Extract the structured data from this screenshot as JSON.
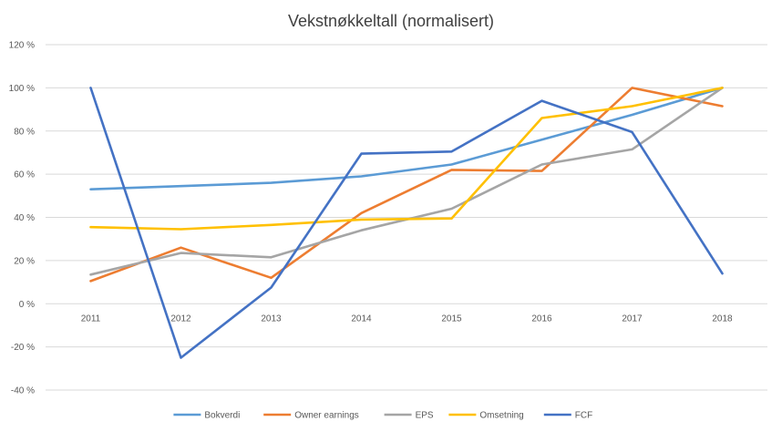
{
  "chart_data": {
    "type": "line",
    "title": "Vekstnøkkeltall (normalisert)",
    "xlabel": "",
    "ylabel": "",
    "x": [
      "2011",
      "2012",
      "2013",
      "2014",
      "2015",
      "2016",
      "2017",
      "2018"
    ],
    "y_ticks": [
      "120 %",
      "100 %",
      "80 %",
      "60 %",
      "40 %",
      "20 %",
      "0 %",
      "-20 %",
      "-40 %"
    ],
    "ylim": [
      -40,
      120
    ],
    "grid": true,
    "legend_position": "bottom",
    "series": [
      {
        "name": "Bokverdi",
        "color": "#5B9BD5",
        "values": [
          53,
          54.5,
          56,
          59,
          64.5,
          76,
          87.5,
          100
        ]
      },
      {
        "name": "Owner earnings",
        "color": "#ED7D31",
        "values": [
          10.5,
          26,
          12,
          42,
          62,
          61.5,
          100,
          91.5
        ]
      },
      {
        "name": "EPS",
        "color": "#A5A5A5",
        "values": [
          13.5,
          23.5,
          21.5,
          34,
          44,
          64.5,
          71.5,
          100
        ]
      },
      {
        "name": "Omsetning",
        "color": "#FFC000",
        "values": [
          35.5,
          34.5,
          36.5,
          39,
          39.5,
          86,
          91.5,
          100
        ]
      },
      {
        "name": "FCF",
        "color": "#4472C4",
        "values": [
          100,
          -25,
          7.5,
          69.5,
          70.5,
          94,
          79.5,
          14
        ]
      }
    ]
  }
}
